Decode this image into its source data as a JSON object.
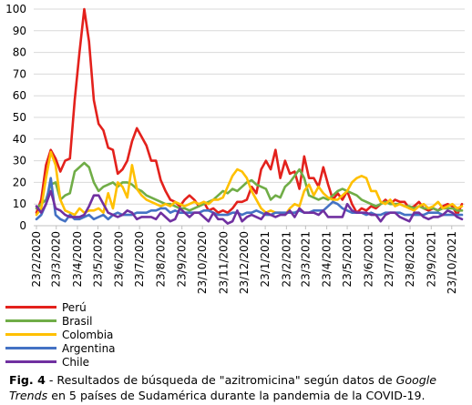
{
  "chart_data": {
    "type": "line",
    "ylim": [
      0,
      100
    ],
    "yticks": [
      0,
      10,
      20,
      30,
      40,
      50,
      60,
      70,
      80,
      90,
      100
    ],
    "x_tick_labels": [
      "23/2/2020",
      "23/3/2020",
      "23/4/2020",
      "23/5/2020",
      "23/6/2020",
      "23/7/2020",
      "23/8/2020",
      "23/9/2020",
      "23/10/2020",
      "23/11/2020",
      "23/12/2020",
      "23/1/2021",
      "23/2/2021",
      "23/3/2021",
      "23/4/2021",
      "23/5/2021",
      "23/6/2021",
      "23/7/2021",
      "23/8/2021",
      "23/9/2021",
      "23/10/2021"
    ],
    "x": [
      "2020-02-23",
      "2020-03-01",
      "2020-03-08",
      "2020-03-15",
      "2020-03-22",
      "2020-03-29",
      "2020-04-05",
      "2020-04-12",
      "2020-04-19",
      "2020-04-26",
      "2020-05-03",
      "2020-05-10",
      "2020-05-17",
      "2020-05-24",
      "2020-05-31",
      "2020-06-07",
      "2020-06-14",
      "2020-06-21",
      "2020-06-28",
      "2020-07-05",
      "2020-07-12",
      "2020-07-19",
      "2020-07-26",
      "2020-08-02",
      "2020-08-09",
      "2020-08-16",
      "2020-08-23",
      "2020-08-30",
      "2020-09-06",
      "2020-09-13",
      "2020-09-20",
      "2020-09-27",
      "2020-10-04",
      "2020-10-11",
      "2020-10-18",
      "2020-10-25",
      "2020-11-01",
      "2020-11-08",
      "2020-11-15",
      "2020-11-22",
      "2020-11-29",
      "2020-12-06",
      "2020-12-13",
      "2020-12-20",
      "2020-12-27",
      "2021-01-03",
      "2021-01-10",
      "2021-01-17",
      "2021-01-24",
      "2021-01-31",
      "2021-02-07",
      "2021-02-14",
      "2021-02-21",
      "2021-02-28",
      "2021-03-07",
      "2021-03-14",
      "2021-03-21",
      "2021-03-28",
      "2021-04-04",
      "2021-04-11",
      "2021-04-18",
      "2021-04-25",
      "2021-05-02",
      "2021-05-09",
      "2021-05-16",
      "2021-05-23",
      "2021-05-30",
      "2021-06-06",
      "2021-06-13",
      "2021-06-20",
      "2021-06-27",
      "2021-07-04",
      "2021-07-11",
      "2021-07-18",
      "2021-07-25",
      "2021-08-01",
      "2021-08-08",
      "2021-08-15",
      "2021-08-22",
      "2021-08-29",
      "2021-09-05",
      "2021-09-12",
      "2021-09-19",
      "2021-09-26",
      "2021-10-03",
      "2021-10-10",
      "2021-10-17",
      "2021-10-24",
      "2021-10-31",
      "2021-11-07"
    ],
    "series": [
      {
        "name": "Perú",
        "color": "#e3211c",
        "values": [
          6,
          12,
          28,
          35,
          31,
          25,
          30,
          31,
          58,
          80,
          100,
          85,
          58,
          47,
          44,
          36,
          35,
          24,
          26,
          30,
          39,
          45,
          41,
          37,
          30,
          30,
          21,
          16,
          12,
          11,
          9,
          12,
          14,
          12,
          9,
          11,
          7,
          8,
          6,
          7,
          6,
          8,
          11,
          11,
          12,
          18,
          15,
          26,
          30,
          26,
          35,
          22,
          30,
          24,
          25,
          17,
          32,
          22,
          22,
          18,
          27,
          19,
          12,
          15,
          12,
          16,
          10,
          6,
          8,
          7,
          9,
          8,
          10,
          12,
          10,
          12,
          11,
          11,
          8,
          9,
          11,
          8,
          7,
          8,
          7,
          9,
          10,
          9,
          5,
          10
        ]
      },
      {
        "name": "Brasil",
        "color": "#70ad47",
        "values": [
          8,
          10,
          12,
          19,
          20,
          12,
          14,
          15,
          25,
          27,
          29,
          27,
          20,
          16,
          18,
          19,
          20,
          18,
          20,
          20,
          19,
          17,
          16,
          14,
          13,
          12,
          11,
          10,
          10,
          9,
          8,
          8,
          7,
          8,
          9,
          10,
          11,
          12,
          14,
          16,
          15,
          17,
          16,
          18,
          20,
          21,
          19,
          18,
          17,
          12,
          14,
          13,
          18,
          20,
          23,
          26,
          22,
          14,
          13,
          12,
          13,
          12,
          14,
          16,
          17,
          16,
          15,
          14,
          12,
          11,
          10,
          9,
          10,
          11,
          10,
          10,
          10,
          9,
          9,
          8,
          9,
          8,
          8,
          8,
          7,
          8,
          8,
          8,
          7,
          7
        ]
      },
      {
        "name": "Colombia",
        "color": "#ffc000",
        "values": [
          5,
          8,
          22,
          34,
          28,
          12,
          7,
          6,
          5,
          8,
          6,
          7,
          7,
          8,
          6,
          15,
          8,
          20,
          18,
          13,
          28,
          17,
          14,
          12,
          11,
          10,
          9,
          10,
          9,
          11,
          10,
          9,
          10,
          11,
          10,
          11,
          10,
          12,
          12,
          13,
          18,
          23,
          26,
          25,
          22,
          16,
          12,
          8,
          6,
          7,
          6,
          6,
          5,
          8,
          10,
          9,
          16,
          19,
          14,
          18,
          15,
          13,
          12,
          12,
          14,
          16,
          20,
          22,
          23,
          22,
          16,
          16,
          11,
          10,
          12,
          9,
          10,
          9,
          8,
          7,
          9,
          10,
          8,
          9,
          11,
          8,
          9,
          10,
          8,
          9
        ]
      },
      {
        "name": "Argentina",
        "color": "#4472c4",
        "values": [
          3,
          5,
          10,
          22,
          5,
          3,
          2,
          5,
          3,
          3,
          4,
          5,
          3,
          4,
          5,
          3,
          5,
          6,
          5,
          5,
          5,
          6,
          6,
          6,
          7,
          7,
          8,
          8,
          6,
          7,
          6,
          6,
          6,
          6,
          6,
          7,
          7,
          6,
          5,
          5,
          5,
          6,
          6,
          5,
          6,
          6,
          7,
          6,
          5,
          5,
          6,
          6,
          6,
          6,
          6,
          7,
          6,
          6,
          7,
          7,
          7,
          9,
          11,
          10,
          8,
          7,
          6,
          6,
          6,
          5,
          6,
          5,
          5,
          6,
          6,
          6,
          6,
          5,
          5,
          5,
          5,
          5,
          6,
          6,
          6,
          5,
          5,
          5,
          5,
          5
        ]
      },
      {
        "name": "Chile",
        "color": "#7030a0",
        "values": [
          9,
          6,
          10,
          16,
          8,
          7,
          5,
          4,
          4,
          4,
          5,
          9,
          14,
          14,
          10,
          6,
          5,
          4,
          5,
          7,
          6,
          3,
          4,
          4,
          4,
          3,
          6,
          4,
          2,
          3,
          8,
          6,
          4,
          6,
          6,
          4,
          2,
          6,
          3,
          3,
          1,
          2,
          7,
          2,
          4,
          5,
          4,
          3,
          6,
          5,
          4,
          5,
          5,
          7,
          4,
          8,
          6,
          6,
          6,
          5,
          7,
          4,
          4,
          4,
          4,
          10,
          7,
          6,
          6,
          6,
          5,
          5,
          2,
          5,
          6,
          6,
          4,
          3,
          2,
          6,
          6,
          4,
          3,
          4,
          4,
          5,
          7,
          6,
          4,
          3
        ]
      }
    ]
  },
  "caption": {
    "label": "Fig. 4",
    "text_part1": " - Resultados de búsqueda de \"azitromicina\" según datos de ",
    "brand": "Google Trends",
    "text_part2": " en 5 países de Sudamérica durante la pandemia de la COVID-19."
  }
}
